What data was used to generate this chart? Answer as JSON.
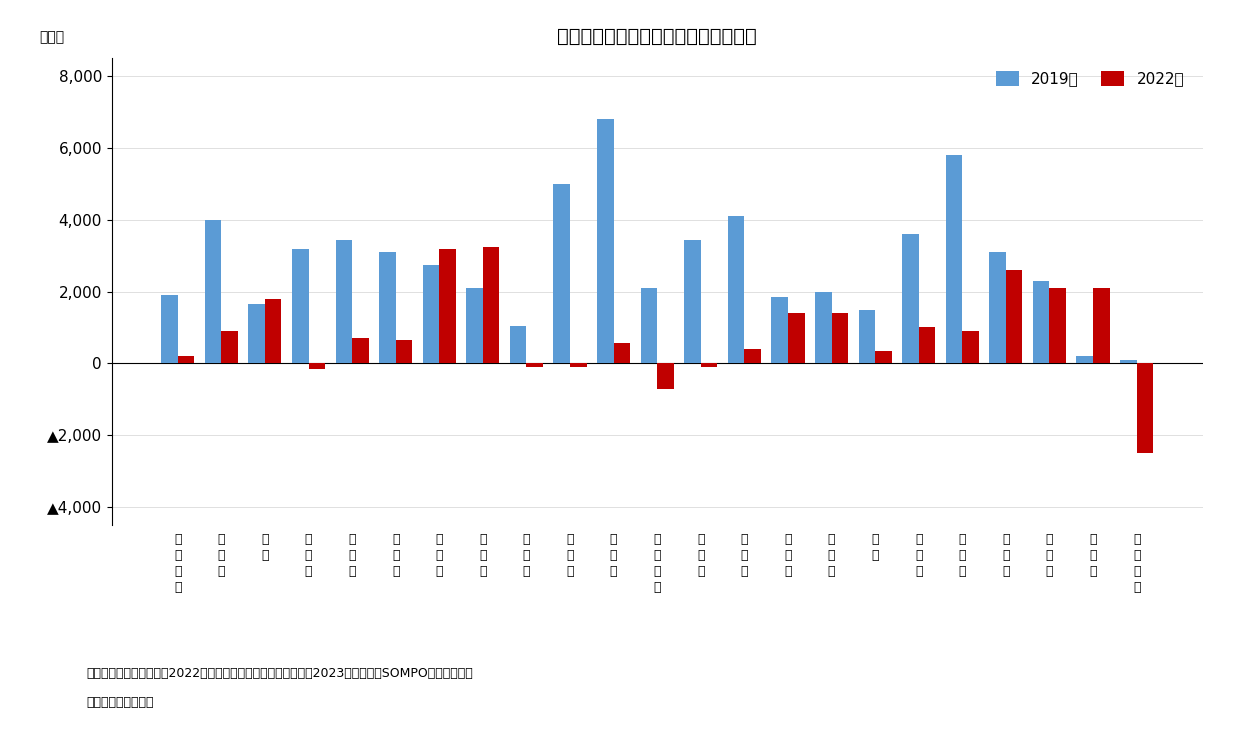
{
  "title": "《図表５》東京都の区部別転入超過数",
  "ylabel": "（人）",
  "source_text1": "（資料）総務省統計局「2022年住民基本台帳人口移動報告」（2023年）より、SOMPOインスティテ",
  "source_text2": "ュート・プラス作成",
  "categories_line1": [
    "千",
    "中",
    "港",
    "新",
    "文",
    "台",
    "墨",
    "江",
    "品",
    "目",
    "大",
    "世",
    "渋",
    "中",
    "杉",
    "豊",
    "北",
    "荒",
    "板",
    "練",
    "足",
    "葛",
    "江"
  ],
  "categories_line2": [
    "代",
    "央",
    "区",
    "宿",
    "京",
    "東",
    "田",
    "東",
    "川",
    "黒",
    "田",
    "田",
    "谷",
    "野",
    "並",
    "島",
    "区",
    "川",
    "橋",
    "馬",
    "立",
    "飾",
    "戸"
  ],
  "categories_line3": [
    "田",
    "区",
    "",
    "区",
    "区",
    "区",
    "区",
    "区",
    "区",
    "区",
    "区",
    "谷",
    "区",
    "区",
    "区",
    "区",
    "",
    "区",
    "区",
    "区",
    "区",
    "区",
    "川"
  ],
  "categories_line4": [
    "区",
    "",
    "",
    "",
    "",
    "",
    "",
    "",
    "",
    "",
    "",
    "区",
    "",
    "",
    "",
    "",
    "",
    "",
    "",
    "",
    "",
    "",
    "区"
  ],
  "values_2019": [
    1900,
    4000,
    1650,
    3200,
    3450,
    3100,
    2750,
    2100,
    1050,
    5000,
    6800,
    2100,
    3450,
    4100,
    1850,
    2000,
    1500,
    3600,
    5800,
    3100,
    2300,
    200,
    100
  ],
  "values_2022": [
    200,
    900,
    1800,
    -150,
    700,
    650,
    3200,
    3250,
    -100,
    -100,
    580,
    -700,
    -100,
    400,
    1400,
    1400,
    350,
    1000,
    900,
    2600,
    2100,
    2100,
    -2500
  ],
  "color_2019": "#5B9BD5",
  "color_2022": "#C00000",
  "ylim_min": -4500,
  "ylim_max": 8500,
  "yticks": [
    -4000,
    -2000,
    0,
    2000,
    4000,
    6000,
    8000
  ],
  "legend_2019": "2019年",
  "legend_2022": "2022年",
  "bar_width": 0.38
}
